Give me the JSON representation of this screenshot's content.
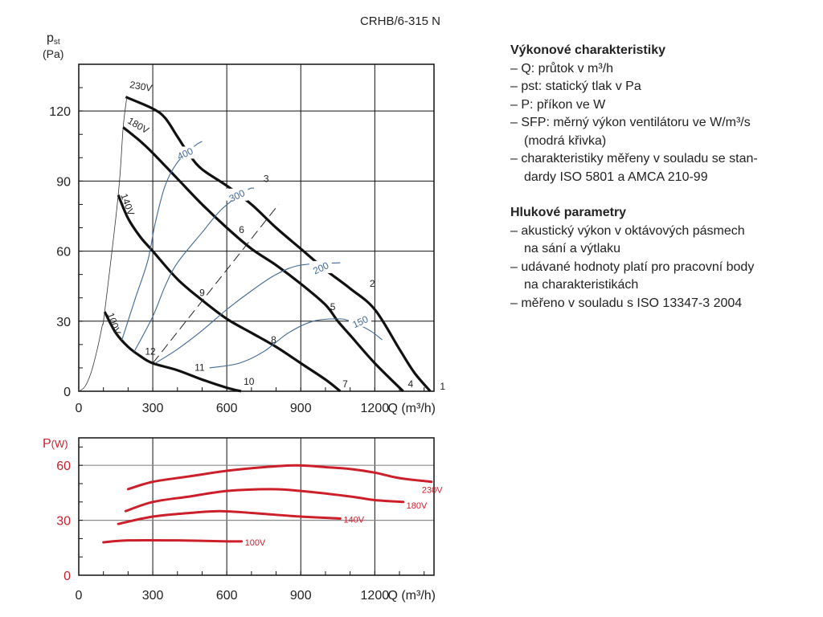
{
  "chart_data": [
    {
      "type": "line",
      "title": "CRHB/6-315 N",
      "ylabel": "pst (Pa)",
      "ylabel_main": "p",
      "ylabel_sub": "st",
      "ylabel_unit": "(Pa)",
      "xlabel": "Q (m³/h)",
      "xlim": [
        0,
        1440
      ],
      "ylim": [
        0,
        140
      ],
      "xticks": [
        "0",
        "300",
        "600",
        "900",
        "1200"
      ],
      "yticks": [
        "0",
        "30",
        "60",
        "90",
        "120"
      ],
      "grid": true,
      "series": [
        {
          "name": "230V",
          "kind": "fan",
          "points": [
            [
              190,
              126
            ],
            [
              300,
              121
            ],
            [
              350,
              117
            ],
            [
              400,
              109
            ],
            [
              450,
              101
            ],
            [
              500,
              95
            ],
            [
              600,
              88
            ],
            [
              700,
              80
            ],
            [
              800,
              70
            ],
            [
              900,
              61
            ],
            [
              1000,
              52
            ],
            [
              1100,
              44
            ],
            [
              1200,
              35
            ],
            [
              1300,
              18
            ],
            [
              1360,
              8
            ],
            [
              1425,
              0
            ]
          ]
        },
        {
          "name": "180V",
          "kind": "fan",
          "points": [
            [
              180,
              113
            ],
            [
              250,
              107
            ],
            [
              300,
              102
            ],
            [
              400,
              91
            ],
            [
              500,
              80
            ],
            [
              600,
              70
            ],
            [
              700,
              61
            ],
            [
              800,
              54
            ],
            [
              900,
              46
            ],
            [
              1000,
              37
            ],
            [
              1050,
              30
            ],
            [
              1100,
              24
            ],
            [
              1200,
              12
            ],
            [
              1315,
              0
            ]
          ]
        },
        {
          "name": "140V",
          "kind": "fan",
          "points": [
            [
              160,
              84
            ],
            [
              200,
              74
            ],
            [
              250,
              66
            ],
            [
              300,
              60
            ],
            [
              400,
              48
            ],
            [
              500,
              39
            ],
            [
              600,
              31
            ],
            [
              700,
              25
            ],
            [
              800,
              19
            ],
            [
              900,
              12
            ],
            [
              1000,
              5
            ],
            [
              1060,
              0
            ]
          ]
        },
        {
          "name": "100V",
          "kind": "fan",
          "points": [
            [
              105,
              34
            ],
            [
              150,
              25
            ],
            [
              200,
              19
            ],
            [
              250,
              15
            ],
            [
              300,
              12
            ],
            [
              400,
              9
            ],
            [
              500,
              5
            ],
            [
              600,
              1.5
            ],
            [
              658,
              0
            ]
          ]
        },
        {
          "name": "stall",
          "kind": "limit",
          "points": [
            [
              0,
              0
            ],
            [
              25,
              2
            ],
            [
              50,
              8
            ],
            [
              75,
              18
            ],
            [
              95,
              28
            ],
            [
              105,
              34
            ],
            [
              160,
              84
            ],
            [
              180,
              113
            ],
            [
              195,
              126
            ]
          ]
        },
        {
          "name": "dashed",
          "kind": "dashed",
          "points": [
            [
              300,
              12
            ],
            [
              810,
              80
            ]
          ]
        },
        {
          "name": "400",
          "kind": "sfp",
          "points": [
            [
              175,
              22
            ],
            [
              230,
              40
            ],
            [
              280,
              56
            ],
            [
              310,
              72
            ],
            [
              350,
              88
            ],
            [
              400,
              98
            ],
            [
              470,
              105
            ],
            [
              500,
              107
            ]
          ],
          "label_at": [
            430,
            102
          ]
        },
        {
          "name": "300",
          "kind": "sfp",
          "points": [
            [
              225,
              17
            ],
            [
              300,
              32
            ],
            [
              350,
              45
            ],
            [
              400,
              55
            ],
            [
              500,
              68
            ],
            [
              580,
              78
            ],
            [
              680,
              86
            ],
            [
              710,
              87
            ]
          ],
          "label_at": [
            640,
            84
          ]
        },
        {
          "name": "200",
          "kind": "sfp",
          "points": [
            [
              310,
              12
            ],
            [
              400,
              18
            ],
            [
              500,
              26
            ],
            [
              600,
              35
            ],
            [
              700,
              43
            ],
            [
              800,
              50
            ],
            [
              900,
              54
            ],
            [
              1060,
              55
            ]
          ],
          "label_at": [
            980,
            53
          ]
        },
        {
          "name": "150",
          "kind": "sfp",
          "points": [
            [
              530,
              10
            ],
            [
              650,
              12
            ],
            [
              750,
              17
            ],
            [
              850,
              25
            ],
            [
              950,
              30
            ],
            [
              1050,
              31
            ],
            [
              1100,
              30
            ],
            [
              1180,
              26
            ],
            [
              1230,
              22
            ]
          ],
          "label_at": [
            1140,
            30
          ]
        }
      ],
      "voltage_labels": [
        {
          "text": "230V",
          "at": [
            205,
            130
          ],
          "rotate": 10
        },
        {
          "text": "180V",
          "at": [
            195,
            115
          ],
          "rotate": 30
        },
        {
          "text": "140V",
          "at": [
            170,
            84
          ],
          "rotate": 70
        },
        {
          "text": "100V",
          "at": [
            115,
            33
          ],
          "rotate": 70
        }
      ],
      "point_labels": [
        {
          "text": "1",
          "at": [
            1475,
            0
          ]
        },
        {
          "text": "2",
          "at": [
            1190,
            44
          ]
        },
        {
          "text": "3",
          "at": [
            760,
            89
          ]
        },
        {
          "text": "4",
          "at": [
            1345,
            1
          ]
        },
        {
          "text": "5",
          "at": [
            1030,
            34
          ]
        },
        {
          "text": "6",
          "at": [
            660,
            67
          ]
        },
        {
          "text": "7",
          "at": [
            1080,
            1
          ]
        },
        {
          "text": "8",
          "at": [
            790,
            20
          ]
        },
        {
          "text": "9",
          "at": [
            500,
            40
          ]
        },
        {
          "text": "10",
          "at": [
            690,
            2
          ]
        },
        {
          "text": "11",
          "at": [
            490,
            8
          ]
        },
        {
          "text": "12",
          "at": [
            290,
            15
          ]
        }
      ]
    },
    {
      "type": "line",
      "title": "",
      "ylabel": "P(W)",
      "ylabel_main": "P",
      "ylabel_unit": "(W)",
      "xlabel": "Q (m³/h)",
      "xlim": [
        0,
        1440
      ],
      "ylim": [
        0,
        75
      ],
      "xticks": [
        "0",
        "300",
        "600",
        "900",
        "1200"
      ],
      "yticks": [
        "0",
        "30",
        "60"
      ],
      "grid": true,
      "series": [
        {
          "name": "230V",
          "points": [
            [
              200,
              47
            ],
            [
              300,
              51
            ],
            [
              450,
              54
            ],
            [
              600,
              57
            ],
            [
              750,
              59
            ],
            [
              880,
              60
            ],
            [
              1000,
              59
            ],
            [
              1100,
              58
            ],
            [
              1200,
              56
            ],
            [
              1300,
              53
            ],
            [
              1430,
              51
            ]
          ]
        },
        {
          "name": "180V",
          "points": [
            [
              190,
              35
            ],
            [
              300,
              40
            ],
            [
              450,
              43
            ],
            [
              600,
              46
            ],
            [
              780,
              47
            ],
            [
              900,
              46
            ],
            [
              1100,
              43
            ],
            [
              1200,
              41
            ],
            [
              1315,
              40
            ]
          ]
        },
        {
          "name": "140V",
          "points": [
            [
              160,
              28
            ],
            [
              300,
              32
            ],
            [
              450,
              34
            ],
            [
              570,
              35
            ],
            [
              700,
              34
            ],
            [
              900,
              32
            ],
            [
              1060,
              31
            ]
          ]
        },
        {
          "name": "100V",
          "points": [
            [
              100,
              18
            ],
            [
              200,
              19
            ],
            [
              400,
              19
            ],
            [
              600,
              18.5
            ],
            [
              660,
              18.5
            ]
          ]
        }
      ]
    }
  ],
  "colors": {
    "fan": "#111111",
    "sfp": "#3f6896",
    "power": "#cc1f2a",
    "grid": "#111111",
    "grid_light": "#8a8a8a"
  },
  "side": {
    "heading1": "Výkonové charakteristiky",
    "items1": [
      "Q: průtok v m³/h",
      "pst: statický tlak v Pa",
      "P: příkon ve W",
      "SFP: měrný výkon ventilátoru ve W/m³/s",
      "(modrá křivka)",
      "charakteristiky měřeny v souladu se stan-",
      "dardy ISO 5801 a AMCA 210-99"
    ],
    "heading2": "Hlukové parametry",
    "items2": [
      "akustický výkon v oktávových pásmech",
      "na sání a výtlaku",
      "udávané hodnoty platí pro pracovní body",
      "na charakteristikách",
      "měřeno v souladu s ISO 13347-3 2004"
    ]
  }
}
